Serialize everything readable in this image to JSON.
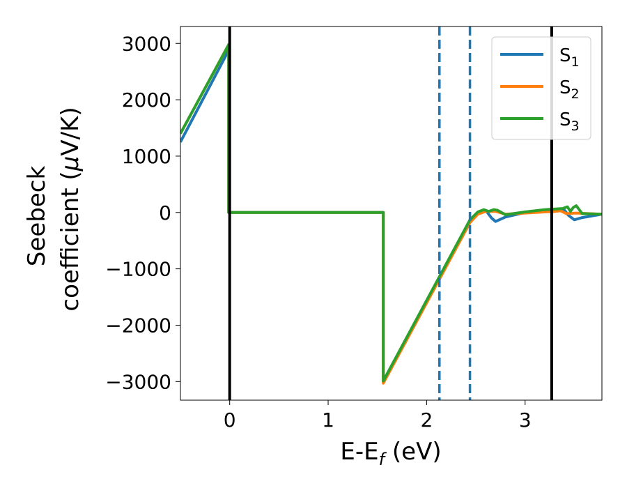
{
  "chart_data": {
    "type": "line",
    "xlabel": "E-E",
    "xlabel_sub": "f",
    "xlabel_unit": " (eV)",
    "ylabel_line1": "Seebeck",
    "ylabel_line2": "coefficient  (",
    "ylabel_mu": "μ",
    "ylabel_unit": "V/K)",
    "xlim": [
      -0.5,
      3.78
    ],
    "ylim": [
      -3330,
      3300
    ],
    "xticks": [
      0,
      1,
      2,
      3
    ],
    "xtick_labels": [
      "0",
      "1",
      "2",
      "3"
    ],
    "yticks": [
      -3000,
      -2000,
      -1000,
      0,
      1000,
      2000,
      3000
    ],
    "ytick_labels": [
      "−3000",
      "−2000",
      "−1000",
      "0",
      "1000",
      "2000",
      "3000"
    ],
    "grid": false,
    "legend_position": "top-right",
    "vertical_lines": [
      {
        "x": 0,
        "style": "solid",
        "color": "#000000"
      },
      {
        "x": 3.27,
        "style": "solid",
        "color": "#000000"
      },
      {
        "x": 2.13,
        "style": "dashed",
        "color": "#1f77b4"
      },
      {
        "x": 2.44,
        "style": "dashed",
        "color": "#1f77b4"
      }
    ],
    "series": [
      {
        "name": "S",
        "sub": "1",
        "color": "#1f77b4",
        "points": [
          [
            -0.5,
            1250
          ],
          [
            -0.01,
            2880
          ],
          [
            -0.01,
            0
          ],
          [
            1.56,
            0
          ],
          [
            1.56,
            -3000
          ],
          [
            2.44,
            -150
          ],
          [
            2.52,
            0
          ],
          [
            2.6,
            40
          ],
          [
            2.66,
            -100
          ],
          [
            2.7,
            -160
          ],
          [
            2.8,
            -80
          ],
          [
            3.0,
            0
          ],
          [
            3.2,
            20
          ],
          [
            3.3,
            20
          ],
          [
            3.4,
            40
          ],
          [
            3.44,
            -50
          ],
          [
            3.5,
            -130
          ],
          [
            3.58,
            -90
          ],
          [
            3.78,
            -30
          ]
        ]
      },
      {
        "name": "S",
        "sub": "2",
        "color": "#ff7f0e",
        "points": [
          [
            -0.5,
            1400
          ],
          [
            -0.01,
            2980
          ],
          [
            -0.01,
            0
          ],
          [
            1.56,
            0
          ],
          [
            1.56,
            -3030
          ],
          [
            2.44,
            -180
          ],
          [
            2.52,
            -30
          ],
          [
            2.6,
            20
          ],
          [
            2.7,
            20
          ],
          [
            2.8,
            -30
          ],
          [
            3.0,
            -10
          ],
          [
            3.2,
            10
          ],
          [
            3.3,
            20
          ],
          [
            3.36,
            30
          ],
          [
            3.42,
            -20
          ],
          [
            3.52,
            -10
          ],
          [
            3.78,
            -30
          ]
        ]
      },
      {
        "name": "S",
        "sub": "3",
        "color": "#2ca02c",
        "points": [
          [
            -0.5,
            1400
          ],
          [
            -0.01,
            2980
          ],
          [
            -0.01,
            0
          ],
          [
            1.56,
            0
          ],
          [
            1.56,
            -2990
          ],
          [
            2.44,
            -130
          ],
          [
            2.52,
            10
          ],
          [
            2.58,
            50
          ],
          [
            2.63,
            20
          ],
          [
            2.68,
            50
          ],
          [
            2.72,
            40
          ],
          [
            2.8,
            -40
          ],
          [
            3.0,
            10
          ],
          [
            3.2,
            50
          ],
          [
            3.3,
            60
          ],
          [
            3.38,
            70
          ],
          [
            3.43,
            100
          ],
          [
            3.46,
            20
          ],
          [
            3.49,
            90
          ],
          [
            3.52,
            120
          ],
          [
            3.58,
            -20
          ],
          [
            3.78,
            -30
          ]
        ]
      }
    ]
  }
}
